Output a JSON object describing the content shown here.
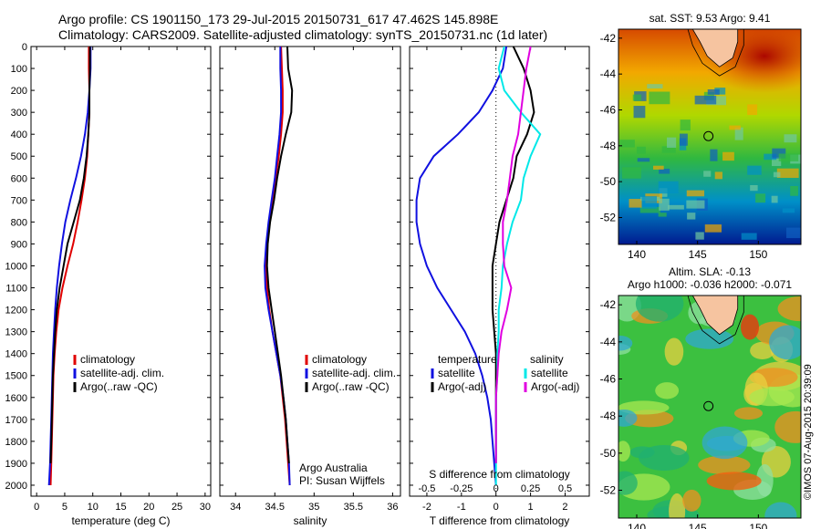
{
  "header": {
    "line1": "Argo profile: CS 1901150_173 29-Jul-2015 20150731_617 47.462S 145.898E",
    "line2": "Climatology: CARS2009. Satellite-adjusted climatology: synTS_20150731.nc (1d later)"
  },
  "stamp": "©IMOS 07-Aug-2015 20:39:09",
  "colors": {
    "climatology": "#e00000",
    "satellite": "#1010e0",
    "argo": "#000000",
    "sat_salinity": "#00e8e8",
    "argo_salinity": "#e000e0",
    "land": "#f6c4a0"
  },
  "chart_data": [
    {
      "type": "line",
      "panel": "temperature",
      "xlabel": "temperature (deg C)",
      "ylabel": "",
      "xlim": [
        -1,
        31
      ],
      "ylim": [
        2050,
        0
      ],
      "xticks": [
        "0",
        "5",
        "10",
        "15",
        "20",
        "25",
        "30"
      ],
      "yticks": [
        "0",
        "100",
        "200",
        "300",
        "400",
        "500",
        "600",
        "700",
        "800",
        "900",
        "1000",
        "1100",
        "1200",
        "1300",
        "1400",
        "1500",
        "1600",
        "1700",
        "1800",
        "1900",
        "2000"
      ],
      "legend": [
        "climatology",
        "satellite-adj. clim.",
        "Argo(..raw -QC)"
      ],
      "series": [
        {
          "name": "climatology",
          "color": "#e00000",
          "x": [
            9.3,
            9.3,
            9.4,
            9.4,
            9.2,
            9.0,
            8.6,
            8.0,
            7.3,
            6.5,
            5.5,
            4.6,
            3.9,
            3.5,
            3.2,
            3.0,
            2.9,
            2.8,
            2.7,
            2.6,
            2.5
          ],
          "y": [
            0,
            100,
            200,
            300,
            400,
            500,
            600,
            700,
            800,
            900,
            1000,
            1100,
            1200,
            1300,
            1400,
            1500,
            1600,
            1700,
            1800,
            1900,
            2000
          ]
        },
        {
          "name": "satellite-adj. clim.",
          "color": "#1010e0",
          "x": [
            9.6,
            9.6,
            9.4,
            9.1,
            8.6,
            7.9,
            7.0,
            6.0,
            5.1,
            4.5,
            4.0,
            3.6,
            3.3,
            3.1,
            2.9,
            2.8,
            2.7,
            2.6,
            2.5,
            2.4,
            2.2
          ],
          "y": [
            0,
            100,
            200,
            300,
            400,
            500,
            600,
            700,
            800,
            900,
            1000,
            1100,
            1200,
            1300,
            1400,
            1500,
            1600,
            1700,
            1800,
            1900,
            2000
          ]
        },
        {
          "name": "Argo(..raw -QC)",
          "color": "#000000",
          "x": [
            9.5,
            9.5,
            9.4,
            9.4,
            9.2,
            8.9,
            8.4,
            7.7,
            6.6,
            5.5,
            4.8,
            4.1,
            3.6,
            3.3,
            3.1,
            2.9,
            2.8,
            2.7,
            2.6,
            2.5
          ],
          "y": [
            0,
            100,
            200,
            300,
            400,
            500,
            600,
            700,
            800,
            900,
            1000,
            1100,
            1200,
            1300,
            1400,
            1500,
            1600,
            1700,
            1800,
            1900
          ]
        }
      ]
    },
    {
      "type": "line",
      "panel": "salinity",
      "xlabel": "salinity",
      "xlim": [
        33.8,
        36.1
      ],
      "ylim": [
        2050,
        0
      ],
      "xticks": [
        "34",
        "34.5",
        "35",
        "35.5",
        "36"
      ],
      "legend": [
        "climatology",
        "satellite-adj. clim.",
        "Argo(..raw -QC)"
      ],
      "annotation": [
        "Argo Australia",
        "PI: Susan Wijffels"
      ],
      "series": [
        {
          "name": "climatology",
          "color": "#e00000",
          "x": [
            34.58,
            34.59,
            34.6,
            34.6,
            34.58,
            34.55,
            34.51,
            34.47,
            34.43,
            34.4,
            34.39,
            34.4,
            34.43,
            34.47,
            34.52,
            34.57,
            34.6,
            34.63,
            34.65,
            34.67,
            34.69
          ],
          "y": [
            0,
            100,
            200,
            300,
            400,
            500,
            600,
            700,
            800,
            900,
            1000,
            1100,
            1200,
            1300,
            1400,
            1500,
            1600,
            1700,
            1800,
            1900,
            2000
          ]
        },
        {
          "name": "satellite-adj. clim.",
          "color": "#1010e0",
          "x": [
            34.57,
            34.57,
            34.58,
            34.58,
            34.56,
            34.53,
            34.5,
            34.46,
            34.42,
            34.39,
            34.37,
            34.38,
            34.42,
            34.47,
            34.52,
            34.57,
            34.61,
            34.64,
            34.66,
            34.68,
            34.69
          ],
          "y": [
            0,
            100,
            200,
            300,
            400,
            500,
            600,
            700,
            800,
            900,
            1000,
            1100,
            1200,
            1300,
            1400,
            1500,
            1600,
            1700,
            1800,
            1900,
            2000
          ]
        },
        {
          "name": "Argo(..raw -QC)",
          "color": "#000000",
          "x": [
            34.66,
            34.67,
            34.72,
            34.71,
            34.64,
            34.58,
            34.53,
            34.49,
            34.44,
            34.41,
            34.4,
            34.42,
            34.46,
            34.5,
            34.54,
            34.58,
            34.61,
            34.64,
            34.66,
            34.68
          ],
          "y": [
            0,
            100,
            200,
            300,
            400,
            500,
            600,
            700,
            800,
            900,
            1000,
            1100,
            1200,
            1300,
            1400,
            1500,
            1600,
            1700,
            1800,
            1900
          ]
        }
      ]
    },
    {
      "type": "line",
      "panel": "difference",
      "xlabel": "T difference from climatology",
      "xlabel_top": "S difference from climatology",
      "xlim": [
        -2.5,
        2.7
      ],
      "ylim": [
        2050,
        0
      ],
      "xticks": [
        "-2",
        "-1",
        "0",
        "1",
        "2"
      ],
      "s_xticks": [
        "-0.5",
        "-0.25",
        "0",
        "0.25",
        "0.5"
      ],
      "legend_temperature_title": "temperature",
      "legend_salinity_title": "salinity",
      "legend": [
        "satellite",
        "Argo(-adj)",
        "satellite",
        "Argo(-adj)"
      ],
      "series": [
        {
          "name": "satellite",
          "group": "temperature",
          "color": "#1010e0",
          "x": [
            0.3,
            0.2,
            -0.1,
            -0.5,
            -1.1,
            -1.8,
            -2.2,
            -2.3,
            -2.3,
            -2.2,
            -2.0,
            -1.7,
            -1.3,
            -0.9,
            -0.6,
            -0.4,
            -0.25,
            -0.15,
            -0.1,
            -0.05,
            0
          ],
          "y": [
            0,
            100,
            200,
            300,
            400,
            500,
            600,
            700,
            800,
            900,
            1000,
            1100,
            1200,
            1300,
            1400,
            1500,
            1600,
            1700,
            1800,
            1900,
            2000
          ]
        },
        {
          "name": "Argo(-adj)",
          "group": "temperature",
          "color": "#000000",
          "x": [
            0.5,
            0.8,
            1.0,
            1.1,
            0.9,
            0.6,
            0.5,
            0.3,
            0.1,
            0,
            -0.1,
            -0.1,
            -0.1,
            -0.05,
            0,
            0,
            0,
            0,
            0,
            0
          ],
          "y": [
            0,
            100,
            200,
            300,
            400,
            500,
            600,
            700,
            800,
            900,
            1000,
            1100,
            1200,
            1300,
            1400,
            1500,
            1600,
            1700,
            1800,
            1900
          ]
        },
        {
          "name": "satellite",
          "group": "salinity",
          "color": "#00e8e8",
          "x": [
            0.06,
            0.02,
            0.06,
            0.18,
            0.32,
            0.25,
            0.2,
            0.18,
            0.12,
            0.08,
            0.05,
            0.04,
            0.02,
            0.02,
            0.01,
            0.01,
            0,
            0,
            0,
            0,
            0
          ],
          "y": [
            0,
            100,
            200,
            300,
            400,
            500,
            600,
            700,
            800,
            900,
            1000,
            1100,
            1200,
            1300,
            1400,
            1500,
            1600,
            1700,
            1800,
            1900,
            2000
          ]
        },
        {
          "name": "Argo(-adj)",
          "group": "salinity",
          "color": "#e000e0",
          "x": [
            0.25,
            0.22,
            0.2,
            0.18,
            0.16,
            0.12,
            0.1,
            0.08,
            0.05,
            0.05,
            0.06,
            0.11,
            0.08,
            0.04,
            0.02,
            0.01,
            0,
            0,
            0,
            0
          ],
          "y": [
            0,
            100,
            200,
            300,
            400,
            500,
            600,
            700,
            800,
            900,
            1000,
            1100,
            1200,
            1300,
            1400,
            1500,
            1600,
            1700,
            1800,
            1900
          ]
        }
      ]
    },
    {
      "type": "heatmap",
      "panel": "sst-map",
      "title": "sat. SST: 9.53 Argo: 9.41",
      "xlim": [
        138.5,
        153.5
      ],
      "ylim": [
        -53.5,
        -41.5
      ],
      "xticks": [
        "140",
        "145",
        "150"
      ],
      "yticks": [
        "-42",
        "-44",
        "-46",
        "-48",
        "-50",
        "-52"
      ],
      "profile_location": {
        "lon": 145.898,
        "lat": -47.462
      }
    },
    {
      "type": "heatmap",
      "panel": "sla-map",
      "title_lines": [
        "Altim. SLA: -0.13",
        "Argo h1000: -0.036 h2000: -0.071"
      ],
      "xlim": [
        138.5,
        153.5
      ],
      "ylim": [
        -53.5,
        -41.5
      ],
      "xticks": [
        "140",
        "145",
        "150"
      ],
      "yticks": [
        "-42",
        "-44",
        "-46",
        "-48",
        "-50",
        "-52"
      ],
      "profile_location": {
        "lon": 145.898,
        "lat": -47.462
      }
    }
  ]
}
